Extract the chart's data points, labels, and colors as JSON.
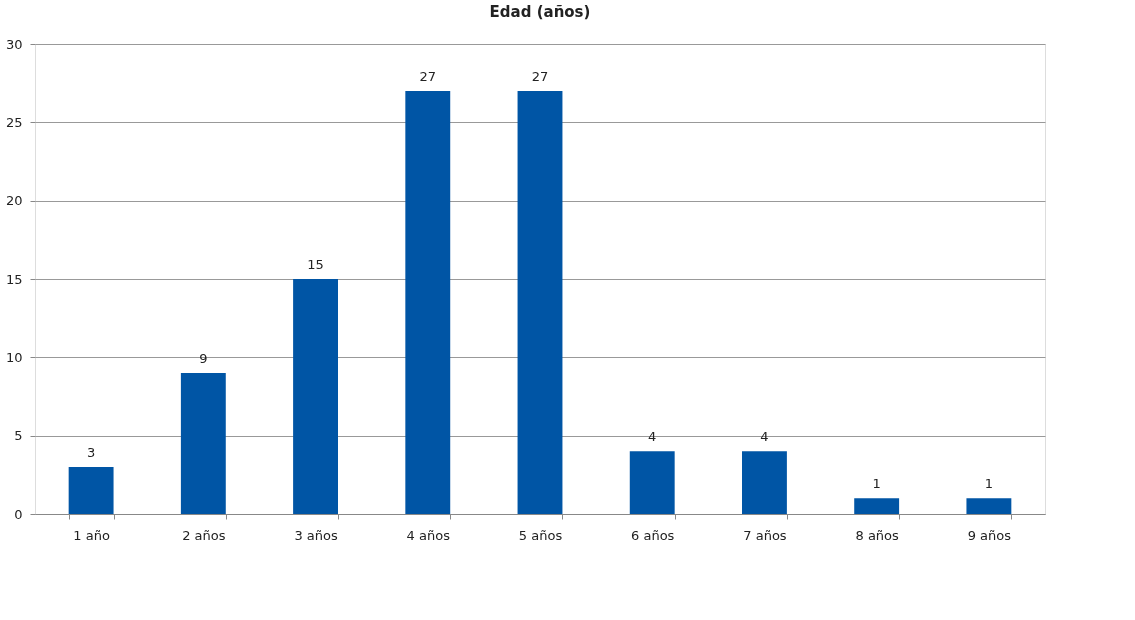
{
  "chart_data": {
    "type": "bar",
    "title": "Edad (años)",
    "categories": [
      "1 año",
      "2 años",
      "3 años",
      "4 años",
      "5 años",
      "6 años",
      "7 años",
      "8 años",
      "9 años"
    ],
    "values": [
      3,
      9,
      15,
      27,
      27,
      4,
      4,
      1,
      1
    ],
    "color": "#0055a5",
    "ylim": [
      0,
      30
    ],
    "yticks": [
      0,
      5,
      10,
      15,
      20,
      25,
      30
    ],
    "grid": "y",
    "data_labels": true
  }
}
